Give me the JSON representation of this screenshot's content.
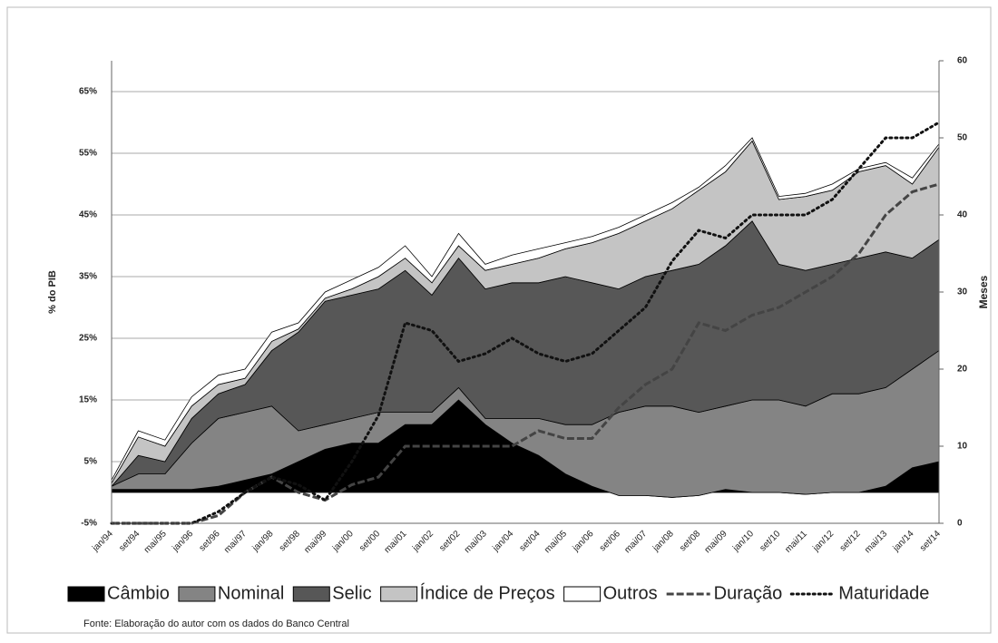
{
  "chart_data": {
    "type": "area",
    "stacked": true,
    "ylabel": "% do PIB",
    "y2label": "Meses",
    "source": "Fonte: Elaboração do autor com os dados do Banco Central",
    "categories": [
      "jan/94",
      "set/94",
      "mai/95",
      "jan/96",
      "set/96",
      "mai/97",
      "jan/98",
      "set/98",
      "mai/99",
      "jan/00",
      "set/00",
      "mai/01",
      "jan/02",
      "set/02",
      "mai/03",
      "jan/04",
      "set/04",
      "mai/05",
      "jan/06",
      "set/06",
      "mai/07",
      "jan/08",
      "set/08",
      "mai/09",
      "jan/10",
      "set/10",
      "mai/11",
      "jan/12",
      "set/12",
      "mai/13",
      "jan/14",
      "set/14"
    ],
    "ylim": [
      -5,
      70
    ],
    "yticks": [
      {
        "value": -5,
        "label": "-5%"
      },
      {
        "value": 5,
        "label": "5%"
      },
      {
        "value": 15,
        "label": "15%"
      },
      {
        "value": 25,
        "label": "25%"
      },
      {
        "value": 35,
        "label": "35%"
      },
      {
        "value": 45,
        "label": "45%"
      },
      {
        "value": 55,
        "label": "55%"
      },
      {
        "value": 65,
        "label": "65%"
      }
    ],
    "y2lim": [
      0,
      60
    ],
    "y2ticks": [
      0,
      10,
      20,
      30,
      40,
      50,
      60
    ],
    "grid": true,
    "series": [
      {
        "name": "Câmbio",
        "color": "#000000",
        "values": [
          0.5,
          0.5,
          0.5,
          0.5,
          1,
          2,
          3,
          5,
          7,
          8,
          8,
          11,
          11,
          15,
          11,
          8,
          6,
          3,
          1,
          -0.5,
          -0.5,
          -0.8,
          -0.5,
          0.5,
          0,
          0,
          -0.3,
          0,
          0,
          1,
          4,
          5
        ]
      },
      {
        "name": "Nominal",
        "color": "#848484",
        "values": [
          0.5,
          2.5,
          2.5,
          7.5,
          11,
          11,
          11,
          5,
          4,
          4,
          5,
          2,
          2,
          2,
          1,
          4,
          6,
          8,
          10,
          13.5,
          14.5,
          14.8,
          13.5,
          13.5,
          15,
          15,
          14.3,
          16,
          16,
          16,
          16,
          18
        ]
      },
      {
        "name": "Selic",
        "color": "#575757",
        "values": [
          0,
          3,
          2,
          4,
          4,
          4.5,
          9,
          16,
          20,
          20,
          20,
          23,
          19,
          21,
          21,
          22,
          22,
          24,
          23,
          20,
          21,
          22,
          24,
          26,
          29,
          22,
          22,
          21,
          22,
          22,
          18,
          18
        ]
      },
      {
        "name": "Índice de Preços",
        "color": "#c4c4c4",
        "values": [
          0.5,
          3,
          2.5,
          2,
          1.5,
          1,
          1.5,
          0.5,
          0.5,
          1,
          2,
          2,
          2,
          2,
          3,
          3,
          4,
          4.5,
          6.5,
          9,
          9,
          10,
          12,
          12,
          13,
          10.5,
          12,
          12,
          14,
          14,
          12,
          15
        ]
      },
      {
        "name": "Outros",
        "color": "#ffffff",
        "values": [
          0.5,
          1,
          1,
          1.5,
          1.5,
          1.5,
          1.5,
          1,
          1,
          1.5,
          1.5,
          2,
          1,
          2,
          1,
          1.5,
          1.5,
          1,
          1,
          1,
          1,
          1,
          0.5,
          1,
          0.5,
          0.5,
          0.5,
          1,
          0.5,
          0.5,
          1,
          0.5
        ]
      },
      {
        "name": "Duração",
        "color": "#444444",
        "axis": "y2",
        "line_style": "dashed",
        "values": [
          0,
          0,
          0,
          0,
          1,
          4,
          6,
          4,
          3,
          5,
          6,
          10,
          10,
          10,
          10,
          10,
          12,
          11,
          11,
          15,
          18,
          20,
          26,
          25,
          27,
          28,
          30,
          32,
          35,
          40,
          43,
          44
        ]
      },
      {
        "name": "Maturidade",
        "color": "#111111",
        "axis": "y2",
        "line_style": "dotted",
        "values": [
          0,
          0,
          0,
          0,
          1.5,
          4,
          6,
          5,
          3,
          8,
          14,
          26,
          25,
          21,
          22,
          24,
          22,
          21,
          22,
          25,
          28,
          34,
          38,
          37,
          40,
          40,
          40,
          42,
          46,
          50,
          50,
          52
        ]
      }
    ]
  }
}
